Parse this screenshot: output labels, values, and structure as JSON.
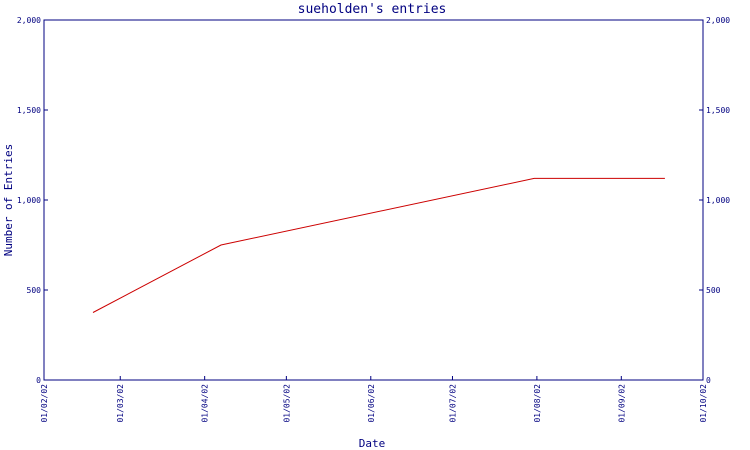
{
  "chart_data": {
    "type": "line",
    "title": "sueholden's entries",
    "xlabel": "Date",
    "ylabel": "Number of Entries",
    "x_ticks": [
      "01/02/02",
      "01/03/02",
      "01/04/02",
      "01/05/02",
      "01/06/02",
      "01/07/02",
      "01/08/02",
      "01/09/02",
      "01/10/02"
    ],
    "y_ticks": [
      0,
      500,
      1000,
      1500,
      2000
    ],
    "y_tick_labels": [
      "0",
      "500",
      "1,000",
      "1,500",
      "2,000"
    ],
    "ylim": [
      0,
      2000
    ],
    "xlim": [
      "01/02/02",
      "01/10/02"
    ],
    "grid": false,
    "right_axis": true,
    "series": [
      {
        "color": "#cc0000",
        "points": [
          {
            "x": "01/02/20",
            "y": 375
          },
          {
            "x": "01/04/08",
            "y": 750
          },
          {
            "x": "01/08/01",
            "y": 1120
          },
          {
            "x": "01/09/18",
            "y": 1120
          }
        ]
      }
    ]
  }
}
